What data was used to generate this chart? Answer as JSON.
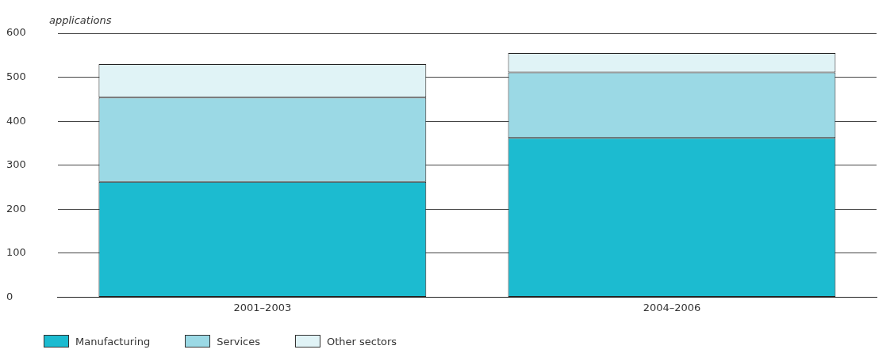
{
  "chart_data": {
    "type": "bar",
    "ylabel": "applications",
    "categories": [
      "2001–2003",
      "2004–2006"
    ],
    "stacked": true,
    "series": [
      {
        "name": "Manufacturing",
        "color": "#1cbbd0",
        "values": [
          262,
          362
        ]
      },
      {
        "name": "Services",
        "color": "#9bd9e5",
        "values": [
          192,
          149
        ]
      },
      {
        "name": "Other sectors",
        "color": "#e0f3f6",
        "values": [
          76,
          44
        ]
      }
    ],
    "ylim": [
      0,
      600
    ],
    "yticks": [
      0,
      100,
      200,
      300,
      400,
      500,
      600
    ],
    "grid": "y",
    "legend": "bottom left"
  }
}
